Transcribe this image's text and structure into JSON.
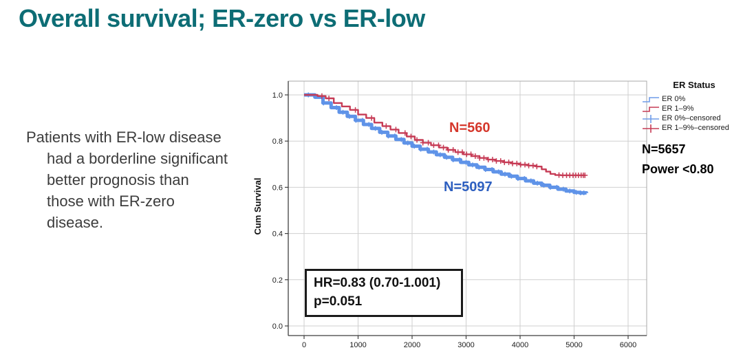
{
  "slide": {
    "title": "Overall survival; ER-zero vs ER-low",
    "title_color": "#0d6d75",
    "note_lines": [
      "Patients with ER-low disease",
      "had a borderline significant",
      "better prognosis than",
      "those with ER-zero",
      "disease."
    ]
  },
  "annotations": {
    "er_low_n_label": "N=560",
    "er_low_n_color": "#d5372b",
    "er_zero_n_label": "N=5097",
    "er_zero_n_color": "#2d5fc0",
    "hr_line1": "HR=0.83 (0.70-1.001)",
    "hr_line2": "p=0.051",
    "total_n": "N=5657",
    "power": "Power <0.80"
  },
  "legend": {
    "title": "ER Status",
    "items": [
      {
        "label": "ER 0%",
        "type": "step",
        "color": "#6f9ce9"
      },
      {
        "label": "ER 1–9%",
        "type": "step",
        "color": "#c63b55"
      },
      {
        "label": "ER 0%–censored",
        "type": "censor",
        "color": "#6f9ce9"
      },
      {
        "label": "ER 1–9%–censored",
        "type": "censor",
        "color": "#c63b55"
      }
    ]
  },
  "chart_data": {
    "type": "line",
    "subtype": "kaplan-meier-step",
    "title": "",
    "xlabel": "",
    "ylabel": "Cum Survival",
    "xlim": [
      0,
      6000
    ],
    "ylim": [
      0.0,
      1.0
    ],
    "grid": true,
    "legend_position": "top-right",
    "x_ticks": [
      0,
      1000,
      2000,
      3000,
      4000,
      5000,
      6000
    ],
    "y_ticks": [
      "0.0",
      "0.2",
      "0.4",
      "0.6",
      "0.8",
      "1.0"
    ],
    "grid_color": "#cfcfcf",
    "series": [
      {
        "name": "ER 0%",
        "n": 5097,
        "color": "#5f93e8",
        "stroke_width": 5,
        "points": [
          [
            0,
            1.0
          ],
          [
            200,
            0.99
          ],
          [
            350,
            0.965
          ],
          [
            500,
            0.945
          ],
          [
            650,
            0.925
          ],
          [
            800,
            0.907
          ],
          [
            950,
            0.89
          ],
          [
            1100,
            0.872
          ],
          [
            1250,
            0.855
          ],
          [
            1400,
            0.838
          ],
          [
            1550,
            0.822
          ],
          [
            1700,
            0.807
          ],
          [
            1850,
            0.792
          ],
          [
            2000,
            0.778
          ],
          [
            2150,
            0.765
          ],
          [
            2300,
            0.753
          ],
          [
            2450,
            0.741
          ],
          [
            2600,
            0.73
          ],
          [
            2750,
            0.719
          ],
          [
            2900,
            0.708
          ],
          [
            3050,
            0.697
          ],
          [
            3200,
            0.687
          ],
          [
            3350,
            0.677
          ],
          [
            3500,
            0.667
          ],
          [
            3650,
            0.657
          ],
          [
            3800,
            0.648
          ],
          [
            3950,
            0.638
          ],
          [
            4100,
            0.628
          ],
          [
            4250,
            0.618
          ],
          [
            4400,
            0.609
          ],
          [
            4550,
            0.6
          ],
          [
            4700,
            0.592
          ],
          [
            4850,
            0.584
          ],
          [
            5000,
            0.578
          ],
          [
            5100,
            0.576
          ],
          [
            5230,
            0.575
          ]
        ],
        "censor_x": [
          80,
          360,
          600,
          720,
          840,
          960,
          1080,
          1200,
          1320,
          1440,
          1560,
          1680,
          1800,
          1920,
          2040,
          2160,
          2280,
          2400,
          2520,
          2640,
          2760,
          2880,
          3000,
          3120,
          3240,
          3360,
          3480,
          3600,
          3720,
          3840,
          3960,
          4080,
          4200,
          4320,
          4440,
          4560,
          4680,
          4800,
          4920,
          5040,
          5120,
          5180
        ],
        "censor_size": 3.5
      },
      {
        "name": "ER 1-9%",
        "n": 560,
        "color": "#c63b55",
        "stroke_width": 2.4,
        "points": [
          [
            0,
            1.0
          ],
          [
            250,
            0.995
          ],
          [
            400,
            0.985
          ],
          [
            550,
            0.965
          ],
          [
            700,
            0.95
          ],
          [
            850,
            0.935
          ],
          [
            1000,
            0.915
          ],
          [
            1150,
            0.9
          ],
          [
            1300,
            0.88
          ],
          [
            1450,
            0.865
          ],
          [
            1600,
            0.85
          ],
          [
            1750,
            0.835
          ],
          [
            1900,
            0.82
          ],
          [
            2050,
            0.805
          ],
          [
            2200,
            0.793
          ],
          [
            2350,
            0.782
          ],
          [
            2500,
            0.772
          ],
          [
            2650,
            0.762
          ],
          [
            2800,
            0.752
          ],
          [
            2950,
            0.743
          ],
          [
            3100,
            0.735
          ],
          [
            3250,
            0.727
          ],
          [
            3400,
            0.72
          ],
          [
            3550,
            0.714
          ],
          [
            3700,
            0.708
          ],
          [
            3850,
            0.703
          ],
          [
            4000,
            0.698
          ],
          [
            4150,
            0.694
          ],
          [
            4300,
            0.69
          ],
          [
            4400,
            0.678
          ],
          [
            4480,
            0.668
          ],
          [
            4560,
            0.658
          ],
          [
            4650,
            0.653
          ],
          [
            4750,
            0.652
          ],
          [
            5210,
            0.652
          ]
        ],
        "censor_x": [
          330,
          460,
          950,
          1250,
          1520,
          1700,
          1870,
          1980,
          2090,
          2200,
          2300,
          2400,
          2490,
          2580,
          2670,
          2760,
          2850,
          2930,
          3010,
          3090,
          3170,
          3250,
          3330,
          3410,
          3490,
          3560,
          3640,
          3710,
          3790,
          3860,
          3940,
          4010,
          4090,
          4160,
          4240,
          4310,
          4720,
          4790,
          4860,
          4920,
          4980,
          5030,
          5080,
          5130,
          5170,
          5200
        ],
        "censor_size": 4
      }
    ]
  }
}
